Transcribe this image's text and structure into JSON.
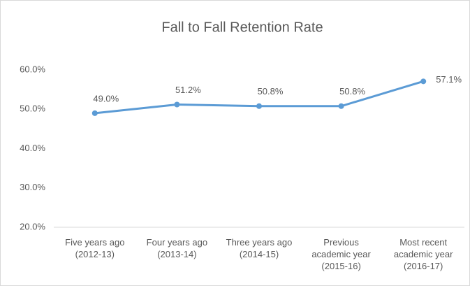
{
  "chart_data": {
    "type": "line",
    "title": "Fall to Fall Retention Rate",
    "categories": [
      "Five years ago\n(2012-13)",
      "Four years ago\n(2013-14)",
      "Three years ago\n(2014-15)",
      "Previous\nacademic year\n(2015-16)",
      "Most recent\nacademic year\n(2016-17)"
    ],
    "series": [
      {
        "name": "Retention Rate",
        "color": "#5b9bd5",
        "values": [
          49.0,
          51.2,
          50.8,
          50.8,
          57.1
        ],
        "value_labels": [
          "49.0%",
          "51.2%",
          "50.8%",
          "50.8%",
          "57.1%"
        ]
      }
    ],
    "ylim": [
      20,
      60
    ],
    "yticks": [
      {
        "value": 20,
        "label": "20.0%"
      },
      {
        "value": 30,
        "label": "30.0%"
      },
      {
        "value": 40,
        "label": "40.0%"
      },
      {
        "value": 50,
        "label": "50.0%"
      },
      {
        "value": 60,
        "label": "60.0%"
      }
    ],
    "grid": false
  }
}
